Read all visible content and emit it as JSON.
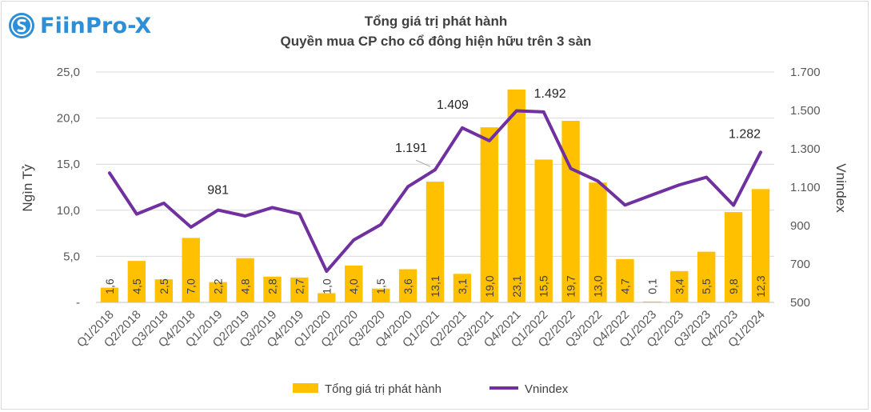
{
  "brand": {
    "name": "FiinPro-X"
  },
  "colors": {
    "bar": "#FFC000",
    "line": "#7030A0",
    "brand": "#2E8FD6"
  },
  "chart_data": {
    "type": "bar",
    "title": "Tổng giá trị phát hành",
    "subtitle": "Quyền mua CP cho cổ đông hiện hữu trên 3 sàn",
    "ylabel": "Ngìn Tỷ",
    "y2label": "Vnindex",
    "ylim": [
      0,
      25
    ],
    "y2lim": [
      500,
      1700
    ],
    "y_ticks": [
      "-",
      "5,0",
      "10,0",
      "15,0",
      "20,0",
      "25,0"
    ],
    "y2_ticks": [
      "500",
      "700",
      "900",
      "1.100",
      "1.300",
      "1.500",
      "1.700"
    ],
    "categories": [
      "Q1/2018",
      "Q2/2018",
      "Q3/2018",
      "Q4/2018",
      "Q1/2019",
      "Q2/2019",
      "Q3/2019",
      "Q4/2019",
      "Q1/2020",
      "Q2/2020",
      "Q3/2020",
      "Q4/2020",
      "Q1/2021",
      "Q2/2021",
      "Q3/2021",
      "Q4/2021",
      "Q1/2022",
      "Q2/2022",
      "Q3/2022",
      "Q4/2022",
      "Q1/2023",
      "Q2/2023",
      "Q3/2023",
      "Q4/2023",
      "Q1/2024"
    ],
    "series": [
      {
        "name": "Tổng giá trị phát hành",
        "type": "bar",
        "axis": "left",
        "values": [
          1.6,
          4.5,
          2.5,
          7.0,
          2.2,
          4.8,
          2.8,
          2.7,
          1.0,
          4.0,
          1.5,
          3.6,
          13.1,
          3.1,
          19.0,
          23.1,
          15.5,
          19.7,
          13.0,
          4.7,
          0.1,
          3.4,
          5.5,
          9.8,
          12.3
        ],
        "labels": [
          "1,6",
          "4,5",
          "2,5",
          "7,0",
          "2,2",
          "4,8",
          "2,8",
          "2,7",
          "1,0",
          "4,0",
          "1,5",
          "3,6",
          "13,1",
          "3,1",
          "19,0",
          "23,1",
          "15,5",
          "19,7",
          "13,0",
          "4,7",
          "0,1",
          "3,4",
          "5,5",
          "9,8",
          "12,3"
        ]
      },
      {
        "name": "Vnindex",
        "type": "line",
        "axis": "right",
        "values": [
          1174,
          960,
          1017,
          892,
          981,
          950,
          994,
          961,
          662,
          825,
          905,
          1103,
          1191,
          1409,
          1342,
          1498,
          1492,
          1197,
          1132,
          1007,
          1060,
          1112,
          1152,
          1006,
          1282
        ]
      }
    ],
    "line_annotations": [
      {
        "index": 4,
        "text": "981"
      },
      {
        "index": 12,
        "text": "1.191"
      },
      {
        "index": 13,
        "text": "1.409"
      },
      {
        "index": 16,
        "text": "1.492"
      },
      {
        "index": 24,
        "text": "1.282"
      }
    ],
    "legend": {
      "position": "bottom"
    }
  }
}
